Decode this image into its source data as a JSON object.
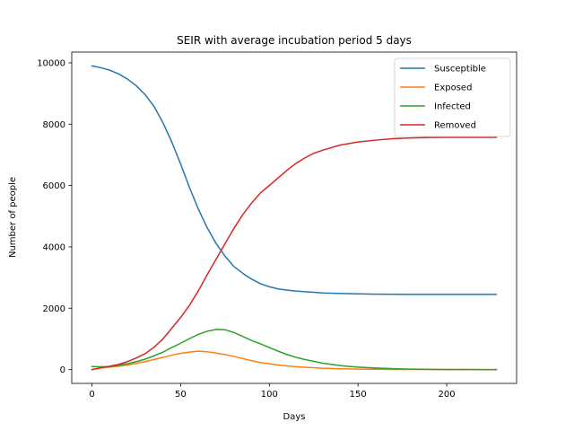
{
  "chart_data": {
    "type": "line",
    "title": "SEIR with average incubation period 5 days",
    "xlabel": "Days",
    "ylabel": "Number of people",
    "xlim": [
      -11.4,
      239.4
    ],
    "ylim": [
      -450,
      10350
    ],
    "xticks": [
      0,
      50,
      100,
      150,
      200
    ],
    "yticks": [
      0,
      2000,
      4000,
      6000,
      8000,
      10000
    ],
    "grid": false,
    "legend": "top-right",
    "series": [
      {
        "name": "Susceptible",
        "color": "#1f77b4",
        "x": [
          0,
          5,
          10,
          15,
          20,
          25,
          30,
          35,
          40,
          45,
          50,
          55,
          60,
          65,
          70,
          75,
          80,
          85,
          90,
          95,
          100,
          105,
          110,
          115,
          120,
          125,
          130,
          140,
          150,
          160,
          170,
          180,
          190,
          200,
          210,
          220,
          228
        ],
        "y": [
          9900,
          9840,
          9760,
          9640,
          9470,
          9250,
          8960,
          8580,
          8050,
          7420,
          6700,
          5930,
          5230,
          4620,
          4110,
          3700,
          3360,
          3140,
          2950,
          2800,
          2700,
          2630,
          2590,
          2560,
          2540,
          2520,
          2500,
          2480,
          2470,
          2460,
          2455,
          2452,
          2450,
          2450,
          2450,
          2450,
          2450
        ]
      },
      {
        "name": "Exposed",
        "color": "#ff7f0e",
        "x": [
          0,
          5,
          10,
          15,
          20,
          25,
          30,
          35,
          40,
          45,
          50,
          55,
          60,
          65,
          70,
          75,
          80,
          85,
          90,
          95,
          100,
          105,
          110,
          115,
          120,
          130,
          140,
          150,
          160,
          170,
          180,
          190,
          200,
          210,
          220,
          228
        ],
        "y": [
          0,
          50,
          80,
          110,
          150,
          200,
          260,
          330,
          400,
          470,
          530,
          570,
          600,
          580,
          540,
          490,
          430,
          360,
          290,
          230,
          190,
          150,
          120,
          95,
          75,
          45,
          25,
          15,
          10,
          5,
          3,
          2,
          1,
          0,
          0,
          0
        ]
      },
      {
        "name": "Infected",
        "color": "#2ca02c",
        "x": [
          0,
          5,
          10,
          15,
          20,
          25,
          30,
          35,
          40,
          45,
          50,
          55,
          60,
          65,
          70,
          75,
          80,
          85,
          90,
          95,
          100,
          105,
          110,
          115,
          120,
          130,
          140,
          150,
          160,
          170,
          180,
          190,
          200,
          210,
          220,
          228
        ],
        "y": [
          100,
          90,
          100,
          140,
          190,
          260,
          340,
          450,
          570,
          720,
          860,
          1010,
          1150,
          1250,
          1310,
          1300,
          1210,
          1080,
          950,
          840,
          720,
          600,
          490,
          400,
          330,
          210,
          130,
          80,
          50,
          30,
          15,
          8,
          4,
          2,
          1,
          0
        ]
      },
      {
        "name": "Removed",
        "color": "#d62728",
        "x": [
          0,
          5,
          10,
          15,
          20,
          25,
          30,
          35,
          40,
          45,
          50,
          55,
          60,
          65,
          70,
          75,
          80,
          85,
          90,
          95,
          100,
          105,
          110,
          115,
          120,
          125,
          130,
          140,
          150,
          160,
          170,
          180,
          190,
          200,
          210,
          220,
          228
        ],
        "y": [
          0,
          60,
          110,
          170,
          260,
          380,
          520,
          730,
          1000,
          1350,
          1700,
          2100,
          2570,
          3100,
          3600,
          4100,
          4600,
          5050,
          5430,
          5760,
          6000,
          6250,
          6500,
          6720,
          6900,
          7050,
          7150,
          7320,
          7420,
          7480,
          7530,
          7550,
          7565,
          7570,
          7570,
          7570,
          7570
        ]
      }
    ]
  }
}
